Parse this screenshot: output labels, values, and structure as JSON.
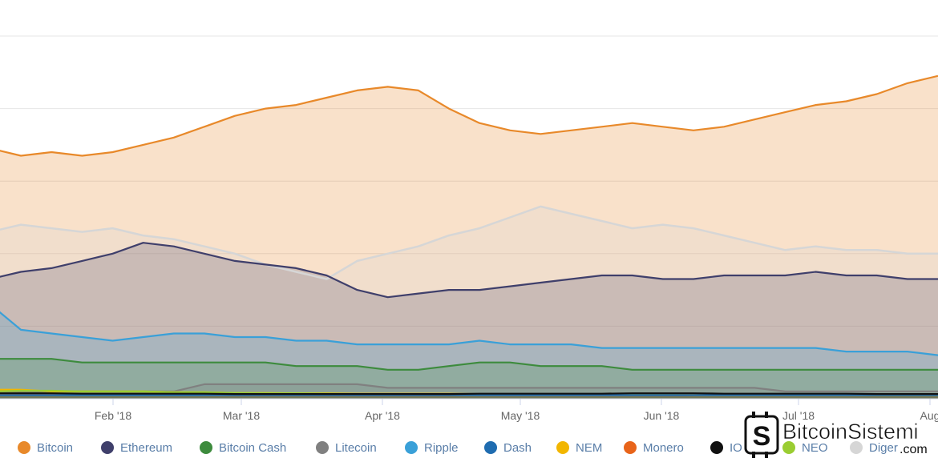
{
  "chart_data": {
    "type": "area",
    "title": "",
    "xlabel": "",
    "ylabel": "",
    "x_ticks": [
      "Feb '18",
      "Mar '18",
      "Apr '18",
      "May '18",
      "Jun '18",
      "Jul '18",
      "Aug"
    ],
    "ylim": [
      0,
      100
    ],
    "grid": true,
    "legend_position": "bottom",
    "x": [
      "Jan 01",
      "Jan 08",
      "Jan 15",
      "Jan 22",
      "Jan 29",
      "Feb 05",
      "Feb 12",
      "Feb 19",
      "Feb 26",
      "Mar 05",
      "Mar 12",
      "Mar 19",
      "Mar 26",
      "Apr 02",
      "Apr 09",
      "Apr 16",
      "Apr 23",
      "Apr 30",
      "May 07",
      "May 14",
      "May 21",
      "May 28",
      "Jun 04",
      "Jun 11",
      "Jun 18",
      "Jun 25",
      "Jul 02",
      "Jul 09",
      "Jul 16",
      "Jul 23",
      "Jul 30",
      "Aug 06"
    ],
    "series": [
      {
        "name": "Bitcoin",
        "color": "#e8892a",
        "values": [
          69,
          67,
          68,
          67,
          68,
          70,
          72,
          75,
          78,
          80,
          81,
          83,
          85,
          86,
          85,
          80,
          76,
          74,
          73,
          74,
          75,
          76,
          75,
          74,
          75,
          77,
          79,
          81,
          82,
          84,
          87,
          89
        ]
      },
      {
        "name": "Ethereum",
        "color": "#3f3f6b",
        "values": [
          33,
          35,
          36,
          38,
          40,
          43,
          42,
          40,
          38,
          37,
          36,
          34,
          30,
          28,
          29,
          30,
          30,
          31,
          32,
          33,
          34,
          34,
          33,
          33,
          34,
          34,
          34,
          35,
          34,
          34,
          33,
          33
        ]
      },
      {
        "name": "Bitcoin Cash",
        "color": "#3d8b3d",
        "values": [
          11,
          11,
          11,
          10,
          10,
          10,
          10,
          10,
          10,
          10,
          9,
          9,
          9,
          8,
          8,
          9,
          10,
          10,
          9,
          9,
          9,
          8,
          8,
          8,
          8,
          8,
          8,
          8,
          8,
          8,
          8,
          8
        ]
      },
      {
        "name": "Litecoin",
        "color": "#808080",
        "values": [
          2,
          2,
          2,
          2,
          2,
          2,
          2,
          4,
          4,
          4,
          4,
          4,
          4,
          3,
          3,
          3,
          3,
          3,
          3,
          3,
          3,
          3,
          3,
          3,
          3,
          3,
          2,
          2,
          2,
          2,
          2,
          2
        ]
      },
      {
        "name": "Ripple",
        "color": "#3aa0d8",
        "values": [
          26,
          19,
          18,
          17,
          16,
          17,
          18,
          18,
          17,
          17,
          16,
          16,
          15,
          15,
          15,
          15,
          16,
          15,
          15,
          15,
          14,
          14,
          14,
          14,
          14,
          14,
          14,
          14,
          13,
          13,
          13,
          12
        ]
      },
      {
        "name": "Dash",
        "color": "#1f6cb0",
        "values": [
          1,
          1,
          1,
          1,
          1,
          1,
          1,
          1,
          1,
          1,
          1,
          1,
          1,
          1,
          1,
          1,
          1,
          1,
          1,
          1,
          1,
          1,
          1,
          1,
          1,
          1,
          1,
          1,
          1,
          1,
          1,
          1
        ]
      },
      {
        "name": "NEM",
        "color": "#f2b600",
        "values": [
          2.5,
          2.5,
          2,
          2,
          2,
          2,
          1.8,
          1.8,
          1.6,
          1.6,
          1.5,
          1.5,
          1.4,
          1.4,
          1.4,
          1.4,
          1.3,
          1.3,
          1.3,
          1.2,
          1.2,
          1.2,
          1.2,
          1.1,
          1.1,
          1.1,
          1.1,
          1.1,
          1.1,
          1,
          1,
          1
        ]
      },
      {
        "name": "Monero",
        "color": "#e8641a",
        "values": [
          1.2,
          1.2,
          1.2,
          1.1,
          1.1,
          1.1,
          1.1,
          1,
          1,
          1,
          1,
          1,
          1,
          1,
          1,
          1,
          1,
          1,
          1,
          1,
          1,
          1,
          1,
          1,
          1,
          1,
          1,
          1,
          1,
          1,
          1,
          1
        ]
      },
      {
        "name": "IOTA",
        "color": "#111111",
        "values": [
          1.5,
          1.5,
          1.5,
          1.4,
          1.4,
          1.4,
          1.4,
          1.4,
          1.3,
          1.3,
          1.3,
          1.3,
          1.3,
          1.3,
          1.3,
          1.3,
          1.4,
          1.4,
          1.4,
          1.4,
          1.4,
          1.5,
          1.5,
          1.5,
          1.4,
          1.4,
          1.4,
          1.4,
          1.4,
          1.3,
          1.3,
          1.3
        ]
      },
      {
        "name": "NEO",
        "color": "#9acd32",
        "values": [
          2,
          2.2,
          2.2,
          2,
          2,
          2,
          1.8,
          1.8,
          1.6,
          1.5,
          1.5,
          1.4,
          1.3,
          1.2,
          1.2,
          1.2,
          1.2,
          1.2,
          1.1,
          1.1,
          1.1,
          1.1,
          1.1,
          1,
          1,
          1,
          1,
          1,
          1,
          1,
          1,
          1
        ]
      },
      {
        "name": "Diğer",
        "color": "#d6d6d6",
        "values": [
          46,
          48,
          47,
          46,
          47,
          45,
          44,
          42,
          40,
          37,
          35,
          33,
          38,
          40,
          42,
          45,
          47,
          50,
          53,
          51,
          49,
          47,
          48,
          47,
          45,
          43,
          41,
          42,
          41,
          41,
          40,
          40
        ]
      }
    ]
  },
  "legend": {
    "items": [
      {
        "label": "Bitcoin",
        "color": "#e8892a"
      },
      {
        "label": "Ethereum",
        "color": "#3f3f6b"
      },
      {
        "label": "Bitcoin Cash",
        "color": "#3d8b3d"
      },
      {
        "label": "Litecoin",
        "color": "#808080"
      },
      {
        "label": "Ripple",
        "color": "#3aa0d8"
      },
      {
        "label": "Dash",
        "color": "#1f6cb0"
      },
      {
        "label": "NEM",
        "color": "#f2b600"
      },
      {
        "label": "Monero",
        "color": "#e8641a"
      },
      {
        "label": "IO",
        "color": "#111111"
      },
      {
        "label": "NEO",
        "color": "#9acd32"
      },
      {
        "label": "Diger",
        "color": "#d6d6d6"
      }
    ]
  },
  "watermark": {
    "brand": "BitcoinSistemi",
    "suffix": ".com",
    "logo_letter": "S"
  }
}
